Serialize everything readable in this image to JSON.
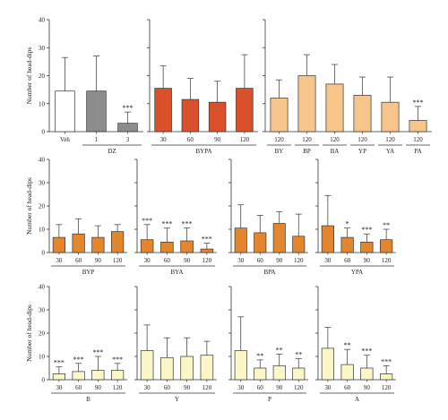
{
  "figure": {
    "y_axis_label": "Number of head-dips"
  },
  "colors": {
    "axis": "#333333",
    "error_bar": "#333333",
    "veh": "#ffffff",
    "dz": "#8c8c8c",
    "orange_red": "#d9502a",
    "light_orange": "#f7c48a",
    "dark_orange": "#e3862d",
    "pale_yellow": "#fbf6c8"
  },
  "chart_data": [
    {
      "type": "bar",
      "panel": "Veh/DZ",
      "ylim": [
        0,
        40
      ],
      "yticks": [
        0,
        10,
        20,
        30,
        40
      ],
      "categories": [
        "Veh",
        "1",
        "3"
      ],
      "groups": [
        {
          "label": "",
          "span": [
            0,
            0
          ]
        },
        {
          "label": "DZ",
          "span": [
            1,
            2
          ]
        }
      ],
      "values": [
        14.5,
        14.5,
        3
      ],
      "errors": [
        12,
        12.5,
        4
      ],
      "significance": [
        "",
        "",
        "***"
      ],
      "bar_colors": [
        "#ffffff",
        "#8c8c8c",
        "#8c8c8c"
      ]
    },
    {
      "type": "bar",
      "panel": "BYPA",
      "ylim": [
        0,
        40
      ],
      "yticks": [
        0,
        10,
        20,
        30,
        40
      ],
      "categories": [
        "30",
        "60",
        "90",
        "120"
      ],
      "groups": [
        {
          "label": "BYPA",
          "span": [
            0,
            3
          ]
        }
      ],
      "values": [
        15.5,
        11.5,
        10.5,
        15.5
      ],
      "errors": [
        8,
        7.5,
        7.5,
        12
      ],
      "significance": [
        "",
        "",
        "",
        ""
      ],
      "bar_colors": [
        "#d9502a",
        "#d9502a",
        "#d9502a",
        "#d9502a"
      ]
    },
    {
      "type": "bar",
      "panel": "BY-PA",
      "ylim": [
        0,
        40
      ],
      "yticks": [
        0,
        10,
        20,
        30,
        40
      ],
      "categories": [
        "120",
        "120",
        "120",
        "120",
        "120",
        "120"
      ],
      "groups": [
        {
          "label": "BY",
          "span": [
            0,
            0
          ]
        },
        {
          "label": "BP",
          "span": [
            1,
            1
          ]
        },
        {
          "label": "BA",
          "span": [
            2,
            2
          ]
        },
        {
          "label": "YP",
          "span": [
            3,
            3
          ]
        },
        {
          "label": "YA",
          "span": [
            4,
            4
          ]
        },
        {
          "label": "PA",
          "span": [
            5,
            5
          ]
        }
      ],
      "values": [
        12,
        20,
        17,
        13,
        10.5,
        4
      ],
      "errors": [
        6.5,
        7.5,
        7,
        6.5,
        9,
        5
      ],
      "significance": [
        "",
        "",
        "",
        "",
        "",
        "***"
      ],
      "bar_colors": [
        "#f7c48a",
        "#f7c48a",
        "#f7c48a",
        "#f7c48a",
        "#f7c48a",
        "#f7c48a"
      ]
    },
    {
      "type": "bar",
      "panel": "BYP",
      "ylim": [
        0,
        40
      ],
      "yticks": [
        0,
        10,
        20,
        30,
        40
      ],
      "categories": [
        "30",
        "60",
        "90",
        "120"
      ],
      "groups": [
        {
          "label": "BYP",
          "span": [
            0,
            3
          ]
        }
      ],
      "values": [
        6.5,
        8,
        6.5,
        9
      ],
      "errors": [
        5.5,
        6.5,
        5,
        3
      ],
      "significance": [
        "",
        "",
        "",
        ""
      ],
      "bar_colors": [
        "#e3862d",
        "#e3862d",
        "#e3862d",
        "#e3862d"
      ]
    },
    {
      "type": "bar",
      "panel": "BYA",
      "ylim": [
        0,
        40
      ],
      "yticks": [
        0,
        10,
        20,
        30,
        40
      ],
      "categories": [
        "30",
        "60",
        "90",
        "120"
      ],
      "groups": [
        {
          "label": "BYA",
          "span": [
            0,
            3
          ]
        }
      ],
      "values": [
        5.5,
        4.5,
        5,
        1.5
      ],
      "errors": [
        6.5,
        6,
        5.5,
        2.5
      ],
      "significance": [
        "***",
        "***",
        "***",
        "***"
      ],
      "bar_colors": [
        "#e3862d",
        "#e3862d",
        "#e3862d",
        "#e3862d"
      ]
    },
    {
      "type": "bar",
      "panel": "BPA",
      "ylim": [
        0,
        40
      ],
      "yticks": [
        0,
        10,
        20,
        30,
        40
      ],
      "categories": [
        "30",
        "60",
        "90",
        "120"
      ],
      "groups": [
        {
          "label": "BPA",
          "span": [
            0,
            3
          ]
        }
      ],
      "values": [
        10.5,
        8.5,
        12.5,
        7
      ],
      "errors": [
        10,
        7.5,
        5,
        9.5
      ],
      "significance": [
        "",
        "",
        "",
        ""
      ],
      "bar_colors": [
        "#e3862d",
        "#e3862d",
        "#e3862d",
        "#e3862d"
      ]
    },
    {
      "type": "bar",
      "panel": "YPA",
      "ylim": [
        0,
        40
      ],
      "yticks": [
        0,
        10,
        20,
        30,
        40
      ],
      "categories": [
        "30",
        "60",
        "90",
        "120"
      ],
      "groups": [
        {
          "label": "YPA",
          "span": [
            0,
            3
          ]
        }
      ],
      "values": [
        11.5,
        6.5,
        4.5,
        5.5
      ],
      "errors": [
        13,
        4,
        3.5,
        4.5
      ],
      "significance": [
        "",
        "*",
        "***",
        "**"
      ],
      "bar_colors": [
        "#e3862d",
        "#e3862d",
        "#e3862d",
        "#e3862d"
      ]
    },
    {
      "type": "bar",
      "panel": "B",
      "ylim": [
        0,
        40
      ],
      "yticks": [
        0,
        10,
        20,
        30,
        40
      ],
      "categories": [
        "30",
        "60",
        "90",
        "120"
      ],
      "groups": [
        {
          "label": "B",
          "span": [
            0,
            3
          ]
        }
      ],
      "values": [
        2.5,
        3.5,
        4,
        4
      ],
      "errors": [
        3,
        3.5,
        6,
        3
      ],
      "significance": [
        "***",
        "***",
        "***",
        "***"
      ],
      "bar_colors": [
        "#fbf6c8",
        "#fbf6c8",
        "#fbf6c8",
        "#fbf6c8"
      ]
    },
    {
      "type": "bar",
      "panel": "Y",
      "ylim": [
        0,
        40
      ],
      "yticks": [
        0,
        10,
        20,
        30,
        40
      ],
      "categories": [
        "30",
        "60",
        "90",
        "120"
      ],
      "groups": [
        {
          "label": "Y",
          "span": [
            0,
            3
          ]
        }
      ],
      "values": [
        12.5,
        9.5,
        10,
        10.5
      ],
      "errors": [
        11,
        8.5,
        8,
        6
      ],
      "significance": [
        "",
        "",
        "",
        ""
      ],
      "bar_colors": [
        "#fbf6c8",
        "#fbf6c8",
        "#fbf6c8",
        "#fbf6c8"
      ]
    },
    {
      "type": "bar",
      "panel": "P",
      "ylim": [
        0,
        40
      ],
      "yticks": [
        0,
        10,
        20,
        30,
        40
      ],
      "categories": [
        "30",
        "60",
        "90",
        "120"
      ],
      "groups": [
        {
          "label": "P",
          "span": [
            0,
            3
          ]
        }
      ],
      "values": [
        12.5,
        5,
        6,
        5
      ],
      "errors": [
        14.5,
        3.5,
        5,
        4
      ],
      "significance": [
        "",
        "**",
        "**",
        "**"
      ],
      "bar_colors": [
        "#fbf6c8",
        "#fbf6c8",
        "#fbf6c8",
        "#fbf6c8"
      ]
    },
    {
      "type": "bar",
      "panel": "A",
      "ylim": [
        0,
        40
      ],
      "yticks": [
        0,
        10,
        20,
        30,
        40
      ],
      "categories": [
        "30",
        "60",
        "90",
        "120"
      ],
      "groups": [
        {
          "label": "A",
          "span": [
            0,
            3
          ]
        }
      ],
      "values": [
        13.5,
        6.5,
        5,
        2.5
      ],
      "errors": [
        9,
        6.5,
        5.5,
        3.5
      ],
      "significance": [
        "",
        "**",
        "***",
        "***"
      ],
      "bar_colors": [
        "#fbf6c8",
        "#fbf6c8",
        "#fbf6c8",
        "#fbf6c8"
      ]
    }
  ]
}
